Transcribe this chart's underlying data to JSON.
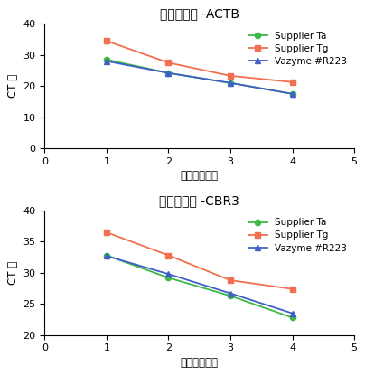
{
  "chart1": {
    "title": "逆转录效率 -ACTB",
    "supplier_ta": [
      28.5,
      24.2,
      21.0,
      17.5
    ],
    "supplier_tg": [
      34.5,
      27.5,
      23.3,
      21.3
    ],
    "vazyme": [
      28.0,
      24.2,
      21.0,
      17.5
    ],
    "xlim": [
      0,
      5
    ],
    "ylim": [
      0,
      40
    ],
    "yticks": [
      0,
      10,
      20,
      30,
      40
    ],
    "xticks": [
      0,
      1,
      2,
      3,
      4,
      5
    ]
  },
  "chart2": {
    "title": "逆转录效率 -CBR3",
    "supplier_ta": [
      32.8,
      29.2,
      26.3,
      22.8
    ],
    "supplier_tg": [
      36.5,
      32.8,
      28.8,
      27.4
    ],
    "vazyme": [
      32.7,
      29.8,
      26.7,
      23.5
    ],
    "xlim": [
      0,
      5
    ],
    "ylim": [
      20,
      40
    ],
    "yticks": [
      20,
      25,
      30,
      35,
      40
    ],
    "xticks": [
      0,
      1,
      2,
      3,
      4,
      5
    ]
  },
  "x": [
    1,
    2,
    3,
    4
  ],
  "xlabel": "不同模板梯度",
  "ylabel": "CT 值",
  "legend_labels": [
    "Supplier Ta",
    "Supplier Tg",
    "Vazyme #R223"
  ],
  "colors": {
    "supplier_ta": "#3cb944",
    "supplier_tg": "#f07050",
    "vazyme": "#4060c8"
  },
  "title_fontsize": 10,
  "axis_fontsize": 8.5,
  "legend_fontsize": 7.5,
  "tick_fontsize": 8,
  "background_color": "#ffffff"
}
